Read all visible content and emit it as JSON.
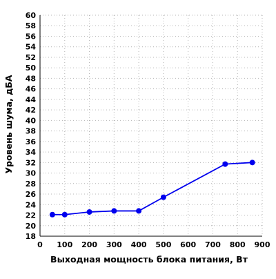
{
  "chart_data": {
    "type": "line",
    "title": "",
    "xlabel": "Выходная мощность блока питания, Вт",
    "ylabel": "Уровень шума, дБА",
    "xlim": [
      0,
      900
    ],
    "ylim": [
      18,
      60
    ],
    "x_ticks": [
      0,
      100,
      200,
      300,
      400,
      500,
      600,
      700,
      800,
      900
    ],
    "y_ticks": [
      18,
      20,
      22,
      24,
      26,
      28,
      30,
      32,
      34,
      36,
      38,
      40,
      42,
      44,
      46,
      48,
      50,
      52,
      54,
      56,
      58,
      60
    ],
    "grid": true,
    "legend": "none",
    "series": [
      {
        "color": "#0000ee",
        "x": [
          50,
          100,
          200,
          300,
          400,
          500,
          750,
          860
        ],
        "y": [
          22.1,
          22.1,
          22.6,
          22.8,
          22.8,
          25.4,
          31.7,
          32.0
        ]
      }
    ]
  }
}
